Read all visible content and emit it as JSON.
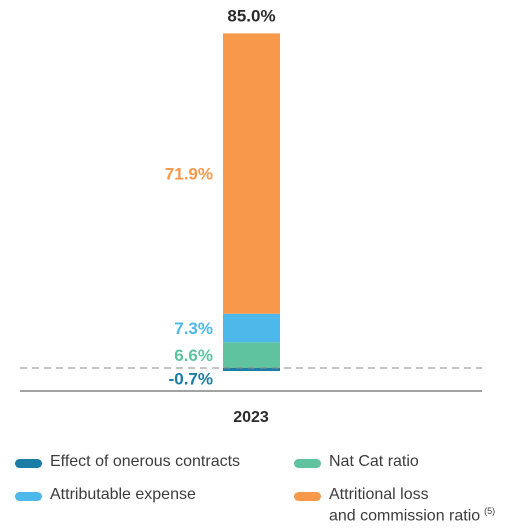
{
  "chart_data": {
    "type": "bar",
    "stacked": true,
    "categories": [
      "2023"
    ],
    "total_label": "85.0%",
    "ylim": [
      -2,
      87
    ],
    "series": [
      {
        "name": "Effect of onerous contracts",
        "values": [
          -0.7
        ],
        "label": "-0.7%",
        "color": "#1b7ca6"
      },
      {
        "name": "Nat Cat ratio",
        "values": [
          6.6
        ],
        "label": "6.6%",
        "color": "#5fc3a0"
      },
      {
        "name": "Attributable expense",
        "values": [
          7.3
        ],
        "label": "7.3%",
        "color": "#4db8ea"
      },
      {
        "name": "Attritional loss and commission ratio",
        "values": [
          71.9
        ],
        "label": "71.9%",
        "color": "#f7984a",
        "footnote": "(5)"
      }
    ],
    "legend": [
      {
        "line1": "Effect of onerous contracts",
        "color": "#1b7ca6"
      },
      {
        "line1": "Nat Cat ratio",
        "color": "#5fc3a0"
      },
      {
        "line1": "Attributable expense",
        "color": "#4db8ea"
      },
      {
        "line1": "Attritional loss",
        "line2": "and commission ratio",
        "footnote": "(5)",
        "color": "#f7984a"
      }
    ]
  }
}
